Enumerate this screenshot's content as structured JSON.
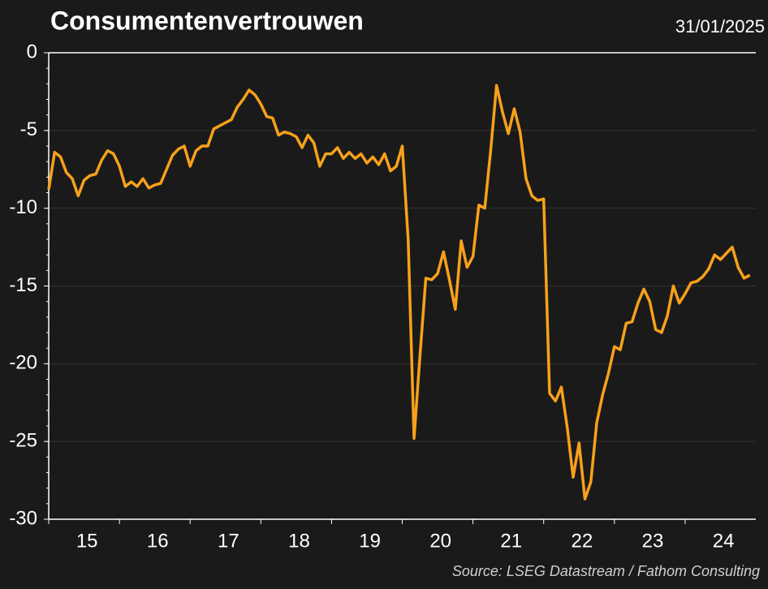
{
  "chart_data": {
    "type": "line",
    "title": "Consumentenvertrouwen",
    "date": "31/01/2025",
    "source": "Source: LSEG Datastream / Fathom Consulting",
    "categories": [
      null,
      null,
      null,
      null,
      null,
      null,
      "15",
      null,
      null,
      null,
      null,
      null,
      null,
      null,
      null,
      null,
      null,
      null,
      "16",
      null,
      null,
      null,
      null,
      null,
      null,
      null,
      null,
      null,
      null,
      null,
      "17",
      null,
      null,
      null,
      null,
      null,
      null,
      null,
      null,
      null,
      null,
      null,
      "18",
      null,
      null,
      null,
      null,
      null,
      null,
      null,
      null,
      null,
      null,
      null,
      "19",
      null,
      null,
      null,
      null,
      null,
      null,
      null,
      null,
      null,
      null,
      null,
      "20",
      null,
      null,
      null,
      null,
      null,
      null,
      null,
      null,
      null,
      null,
      null,
      "21",
      null,
      null,
      null,
      null,
      null,
      null,
      null,
      null,
      null,
      null,
      null,
      "22",
      null,
      null,
      null,
      null,
      null,
      null,
      null,
      null,
      null,
      null,
      null,
      "23",
      null,
      null,
      null,
      null,
      null,
      null,
      null,
      null,
      null,
      null,
      null,
      "24",
      null,
      null,
      null,
      null,
      null
    ],
    "series": [
      {
        "name": "Consumentenvertrouwen",
        "color": "#f7a11a",
        "values": [
          -8.8,
          -6.4,
          -6.7,
          -7.7,
          -8.1,
          -9.2,
          -8.2,
          -7.9,
          -7.8,
          -6.9,
          -6.3,
          -6.5,
          -7.3,
          -8.6,
          -8.3,
          -8.6,
          -8.1,
          -8.7,
          -8.5,
          -8.4,
          -7.5,
          -6.6,
          -6.2,
          -6.0,
          -7.3,
          -6.3,
          -6.0,
          -6.0,
          -4.9,
          -4.7,
          -4.5,
          -4.3,
          -3.5,
          -3.0,
          -2.4,
          -2.7,
          -3.3,
          -4.1,
          -4.2,
          -5.3,
          -5.1,
          -5.2,
          -5.4,
          -6.1,
          -5.3,
          -5.8,
          -7.3,
          -6.5,
          -6.5,
          -6.1,
          -6.8,
          -6.4,
          -6.8,
          -6.5,
          -7.1,
          -6.7,
          -7.2,
          -6.5,
          -7.6,
          -7.3,
          -6.0,
          -12.0,
          -24.8,
          -19.5,
          -14.5,
          -14.6,
          -14.2,
          -12.8,
          -14.6,
          -16.5,
          -12.1,
          -13.8,
          -13.1,
          -9.8,
          -10.0,
          -6.3,
          -2.1,
          -3.8,
          -5.2,
          -3.6,
          -5.1,
          -8.1,
          -9.2,
          -9.5,
          -9.4,
          -21.9,
          -22.4,
          -21.5,
          -24.1,
          -27.3,
          -25.1,
          -28.7,
          -27.6,
          -23.8,
          -22.0,
          -20.6,
          -18.9,
          -19.1,
          -17.4,
          -17.3,
          -16.1,
          -15.2,
          -16.0,
          -17.8,
          -18.0,
          -16.9,
          -15.0,
          -16.1,
          -15.5,
          -14.8,
          -14.7,
          -14.4,
          -13.9,
          -13.0,
          -13.3,
          -12.9,
          -12.5,
          -13.8,
          -14.5,
          -14.3
        ]
      }
    ],
    "ylim": [
      -30,
      0
    ],
    "yticks": [
      0,
      -5,
      -10,
      -15,
      -20,
      -25,
      -30
    ],
    "grid": true
  }
}
